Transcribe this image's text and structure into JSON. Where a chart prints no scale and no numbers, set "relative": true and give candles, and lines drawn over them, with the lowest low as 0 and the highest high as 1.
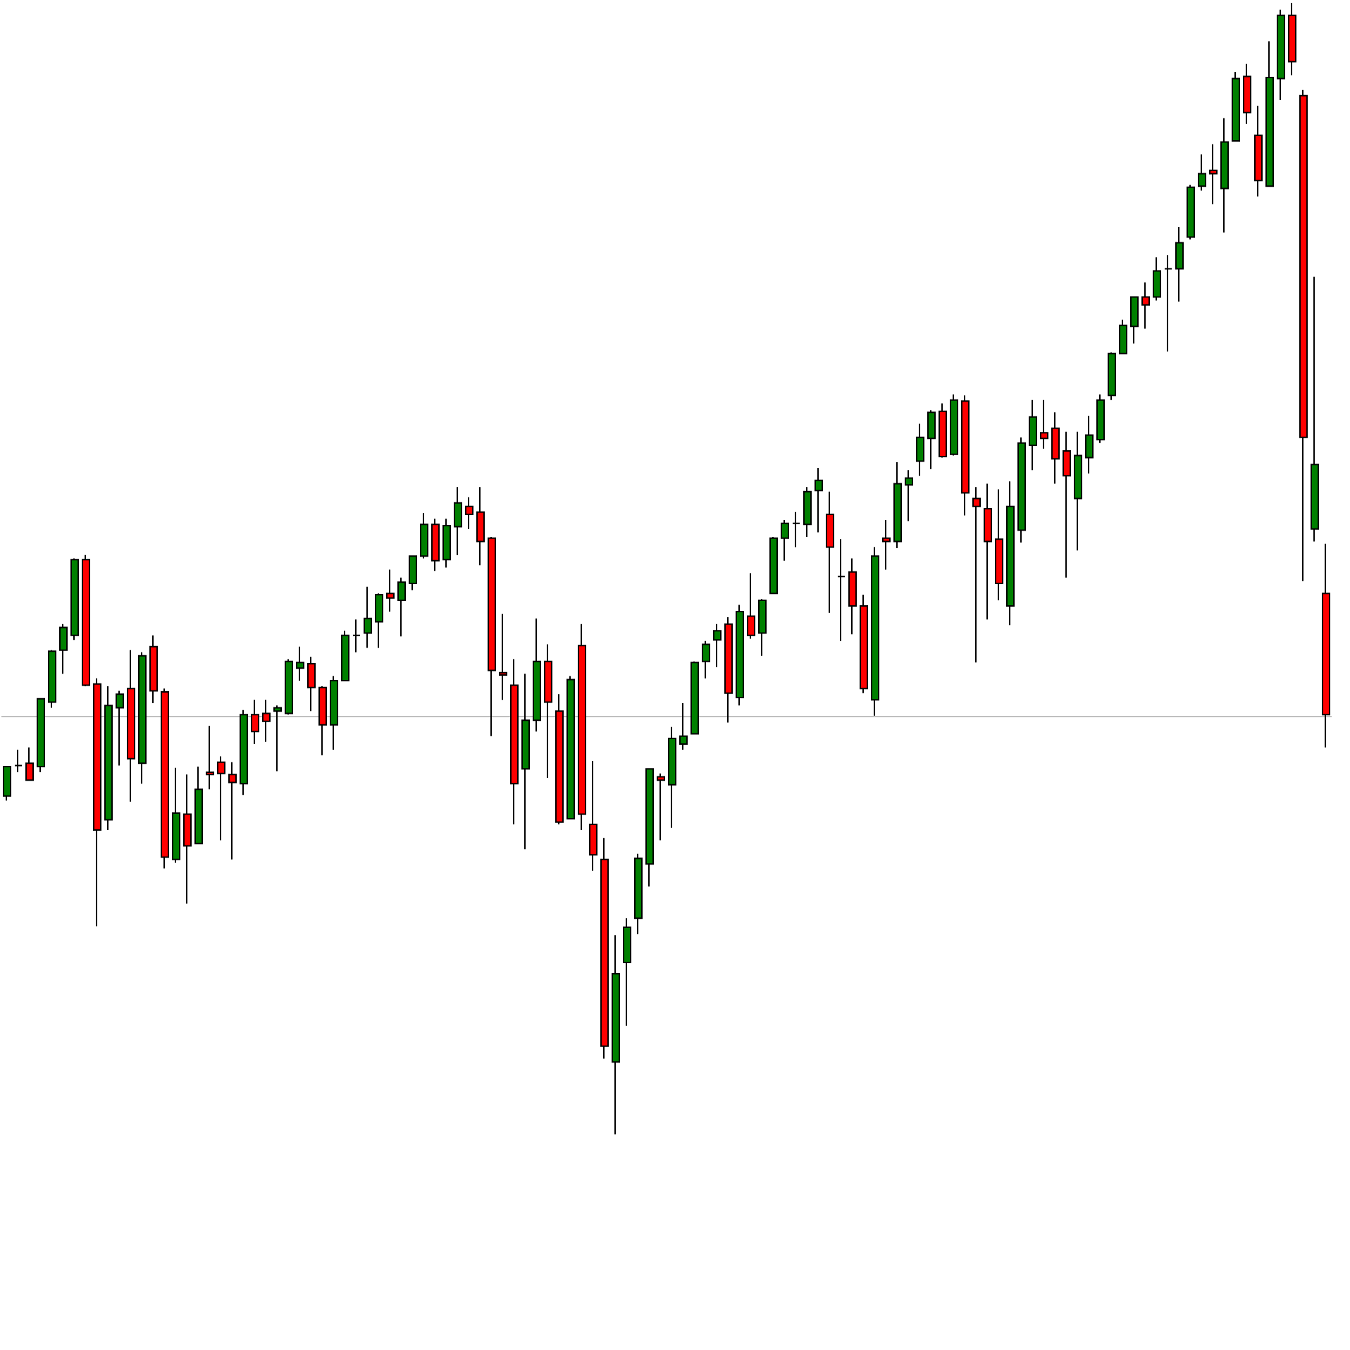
{
  "chart_data": {
    "type": "candlestick",
    "relative": true,
    "categories": [
      null,
      null,
      null,
      null,
      null,
      null,
      null,
      null,
      null,
      null,
      null,
      null,
      null,
      null,
      null,
      null,
      null,
      null,
      null,
      null,
      null,
      null,
      null,
      null,
      null,
      null,
      null,
      null,
      null,
      null,
      null,
      null,
      null,
      null,
      null,
      null,
      null,
      null,
      null,
      null,
      null,
      null,
      null,
      null,
      null,
      null,
      null,
      null,
      null,
      null,
      null,
      null,
      null,
      null,
      null,
      null,
      null,
      null,
      null,
      null,
      null,
      null,
      null,
      null,
      null,
      null,
      null,
      null,
      null,
      null,
      null,
      null,
      null,
      null,
      null,
      null,
      null,
      null,
      null,
      null,
      null,
      null,
      null,
      null,
      null,
      null,
      null,
      null,
      null,
      null,
      null,
      null,
      null,
      null,
      null,
      null,
      null,
      null,
      null,
      null,
      null,
      null,
      null,
      null,
      null,
      null,
      null,
      null,
      null,
      null,
      null,
      null,
      null,
      null,
      null,
      null,
      null,
      null
    ],
    "ohlc": [
      [
        0.299,
        0.325,
        0.295,
        0.325
      ],
      [
        0.326,
        0.34,
        0.32,
        0.326
      ],
      [
        0.328,
        0.342,
        0.313,
        0.313
      ],
      [
        0.325,
        0.385,
        0.32,
        0.385
      ],
      [
        0.382,
        0.428,
        0.377,
        0.427
      ],
      [
        0.428,
        0.451,
        0.407,
        0.448
      ],
      [
        0.441,
        0.509,
        0.437,
        0.508
      ],
      [
        0.508,
        0.512,
        0.396,
        0.397
      ],
      [
        0.398,
        0.403,
        0.184,
        0.269
      ],
      [
        0.278,
        0.396,
        0.269,
        0.379
      ],
      [
        0.377,
        0.392,
        0.326,
        0.389
      ],
      [
        0.394,
        0.428,
        0.294,
        0.332
      ],
      [
        0.328,
        0.426,
        0.31,
        0.423
      ],
      [
        0.431,
        0.441,
        0.381,
        0.392
      ],
      [
        0.391,
        0.394,
        0.235,
        0.245
      ],
      [
        0.243,
        0.324,
        0.24,
        0.284
      ],
      [
        0.283,
        0.318,
        0.204,
        0.255
      ],
      [
        0.257,
        0.325,
        0.257,
        0.305
      ],
      [
        0.32,
        0.361,
        0.305,
        0.318
      ],
      [
        0.329,
        0.334,
        0.26,
        0.319
      ],
      [
        0.318,
        0.329,
        0.243,
        0.311
      ],
      [
        0.31,
        0.375,
        0.3,
        0.371
      ],
      [
        0.371,
        0.384,
        0.345,
        0.356
      ],
      [
        0.372,
        0.384,
        0.347,
        0.365
      ],
      [
        0.374,
        0.379,
        0.321,
        0.377
      ],
      [
        0.372,
        0.42,
        0.371,
        0.418
      ],
      [
        0.412,
        0.431,
        0.401,
        0.417
      ],
      [
        0.416,
        0.422,
        0.374,
        0.395
      ],
      [
        0.395,
        0.396,
        0.335,
        0.362
      ],
      [
        0.362,
        0.405,
        0.34,
        0.401
      ],
      [
        0.401,
        0.445,
        0.401,
        0.441
      ],
      [
        0.441,
        0.455,
        0.426,
        0.441
      ],
      [
        0.443,
        0.484,
        0.43,
        0.456
      ],
      [
        0.453,
        0.478,
        0.43,
        0.477
      ],
      [
        0.478,
        0.499,
        0.462,
        0.474
      ],
      [
        0.472,
        0.492,
        0.44,
        0.488
      ],
      [
        0.487,
        0.511,
        0.481,
        0.511
      ],
      [
        0.511,
        0.549,
        0.509,
        0.539
      ],
      [
        0.539,
        0.544,
        0.498,
        0.507
      ],
      [
        0.508,
        0.544,
        0.501,
        0.538
      ],
      [
        0.537,
        0.572,
        0.512,
        0.558
      ],
      [
        0.555,
        0.563,
        0.535,
        0.548
      ],
      [
        0.55,
        0.572,
        0.503,
        0.524
      ],
      [
        0.527,
        0.528,
        0.352,
        0.41
      ],
      [
        0.408,
        0.46,
        0.384,
        0.406
      ],
      [
        0.397,
        0.42,
        0.274,
        0.31
      ],
      [
        0.323,
        0.407,
        0.252,
        0.366
      ],
      [
        0.366,
        0.456,
        0.356,
        0.418
      ],
      [
        0.418,
        0.433,
        0.315,
        0.382
      ],
      [
        0.374,
        0.389,
        0.274,
        0.276
      ],
      [
        0.279,
        0.405,
        0.279,
        0.402
      ],
      [
        0.432,
        0.451,
        0.269,
        0.283
      ],
      [
        0.274,
        0.33,
        0.233,
        0.247
      ],
      [
        0.243,
        0.262,
        0.067,
        0.078
      ],
      [
        0.064,
        0.176,
        0,
        0.142
      ],
      [
        0.152,
        0.191,
        0.096,
        0.183
      ],
      [
        0.191,
        0.248,
        0.177,
        0.244
      ],
      [
        0.239,
        0.323,
        0.219,
        0.323
      ],
      [
        0.316,
        0.319,
        0.26,
        0.313
      ],
      [
        0.309,
        0.36,
        0.271,
        0.35
      ],
      [
        0.345,
        0.381,
        0.34,
        0.352
      ],
      [
        0.354,
        0.418,
        0.354,
        0.417
      ],
      [
        0.418,
        0.436,
        0.403,
        0.433
      ],
      [
        0.437,
        0.451,
        0.413,
        0.445
      ],
      [
        0.451,
        0.457,
        0.364,
        0.39
      ],
      [
        0.386,
        0.468,
        0.379,
        0.462
      ],
      [
        0.458,
        0.496,
        0.438,
        0.441
      ],
      [
        0.443,
        0.473,
        0.423,
        0.472
      ],
      [
        0.478,
        0.528,
        0.478,
        0.527
      ],
      [
        0.527,
        0.543,
        0.507,
        0.54
      ],
      [
        0.54,
        0.55,
        0.519,
        0.54
      ],
      [
        0.539,
        0.572,
        0.528,
        0.568
      ],
      [
        0.569,
        0.589,
        0.532,
        0.578
      ],
      [
        0.548,
        0.568,
        0.461,
        0.519
      ],
      [
        0.493,
        0.526,
        0.436,
        0.493
      ],
      [
        0.497,
        0.509,
        0.442,
        0.467
      ],
      [
        0.467,
        0.477,
        0.39,
        0.394
      ],
      [
        0.384,
        0.519,
        0.37,
        0.511
      ],
      [
        0.527,
        0.543,
        0.499,
        0.524
      ],
      [
        0.524,
        0.594,
        0.518,
        0.575
      ],
      [
        0.574,
        0.587,
        0.542,
        0.58
      ],
      [
        0.595,
        0.628,
        0.582,
        0.616
      ],
      [
        0.615,
        0.64,
        0.588,
        0.638
      ],
      [
        0.639,
        0.646,
        0.598,
        0.599
      ],
      [
        0.601,
        0.654,
        0.6,
        0.649
      ],
      [
        0.648,
        0.653,
        0.547,
        0.567
      ],
      [
        0.562,
        0.572,
        0.417,
        0.555
      ],
      [
        0.553,
        0.575,
        0.455,
        0.524
      ],
      [
        0.526,
        0.57,
        0.472,
        0.487
      ],
      [
        0.467,
        0.577,
        0.45,
        0.555
      ],
      [
        0.534,
        0.616,
        0.523,
        0.611
      ],
      [
        0.609,
        0.649,
        0.587,
        0.634
      ],
      [
        0.62,
        0.649,
        0.606,
        0.615
      ],
      [
        0.624,
        0.638,
        0.575,
        0.597
      ],
      [
        0.604,
        0.621,
        0.492,
        0.582
      ],
      [
        0.562,
        0.621,
        0.516,
        0.6
      ],
      [
        0.598,
        0.635,
        0.584,
        0.618
      ],
      [
        0.614,
        0.654,
        0.611,
        0.649
      ],
      [
        0.653,
        0.691,
        0.649,
        0.69
      ],
      [
        0.69,
        0.72,
        0.69,
        0.715
      ],
      [
        0.714,
        0.74,
        0.699,
        0.74
      ],
      [
        0.74,
        0.753,
        0.712,
        0.733
      ],
      [
        0.74,
        0.775,
        0.737,
        0.763
      ],
      [
        0.765,
        0.777,
        0.692,
        0.765
      ],
      [
        0.765,
        0.802,
        0.736,
        0.788
      ],
      [
        0.793,
        0.839,
        0.791,
        0.837
      ],
      [
        0.838,
        0.866,
        0.834,
        0.849
      ],
      [
        0.852,
        0.875,
        0.822,
        0.849
      ],
      [
        0.836,
        0.898,
        0.797,
        0.877
      ],
      [
        0.878,
        0.939,
        0.878,
        0.933
      ],
      [
        0.935,
        0.946,
        0.893,
        0.903
      ],
      [
        0.883,
        0.909,
        0.829,
        0.843
      ],
      [
        0.838,
        0.966,
        0.838,
        0.934
      ],
      [
        0.933,
        0.994,
        0.914,
        0.989
      ],
      [
        0.989,
        1,
        0.936,
        0.948
      ],
      [
        0.918,
        0.923,
        0.489,
        0.616
      ],
      [
        0.535,
        0.758,
        0.524,
        0.592
      ],
      [
        0.478,
        0.522,
        0.342,
        0.371
      ]
    ],
    "colors": [
      "#008000",
      "#000000",
      "#ff0000",
      "#008000",
      "#008000",
      "#008000",
      "#008000",
      "#ff0000",
      "#ff0000",
      "#008000",
      "#008000",
      "#ff0000",
      "#008000",
      "#ff0000",
      "#ff0000",
      "#008000",
      "#ff0000",
      "#008000",
      "#ff0000",
      "#ff0000",
      "#ff0000",
      "#008000",
      "#ff0000",
      "#ff0000",
      "#008000",
      "#008000",
      "#008000",
      "#ff0000",
      "#ff0000",
      "#008000",
      "#008000",
      "#000000",
      "#008000",
      "#008000",
      "#ff0000",
      "#008000",
      "#008000",
      "#008000",
      "#ff0000",
      "#008000",
      "#008000",
      "#ff0000",
      "#ff0000",
      "#ff0000",
      "#ff0000",
      "#ff0000",
      "#008000",
      "#008000",
      "#ff0000",
      "#ff0000",
      "#008000",
      "#ff0000",
      "#ff0000",
      "#ff0000",
      "#008000",
      "#008000",
      "#008000",
      "#008000",
      "#ff0000",
      "#008000",
      "#008000",
      "#008000",
      "#008000",
      "#008000",
      "#ff0000",
      "#008000",
      "#ff0000",
      "#008000",
      "#008000",
      "#008000",
      "#000000",
      "#008000",
      "#008000",
      "#ff0000",
      "#000000",
      "#ff0000",
      "#ff0000",
      "#008000",
      "#ff0000",
      "#008000",
      "#008000",
      "#008000",
      "#008000",
      "#ff0000",
      "#008000",
      "#ff0000",
      "#ff0000",
      "#ff0000",
      "#ff0000",
      "#008000",
      "#008000",
      "#008000",
      "#ff0000",
      "#ff0000",
      "#ff0000",
      "#008000",
      "#008000",
      "#008000",
      "#008000",
      "#008000",
      "#008000",
      "#ff0000",
      "#008000",
      "#000000",
      "#008000",
      "#008000",
      "#008000",
      "#ff0000",
      "#008000",
      "#008000",
      "#ff0000",
      "#ff0000",
      "#008000",
      "#008000",
      "#ff0000",
      "#ff0000",
      "#008000",
      "#ff0000"
    ],
    "ref_lines": [
      {
        "axis": "y",
        "value": 0.372,
        "color": "#c0c0c0"
      }
    ]
  }
}
